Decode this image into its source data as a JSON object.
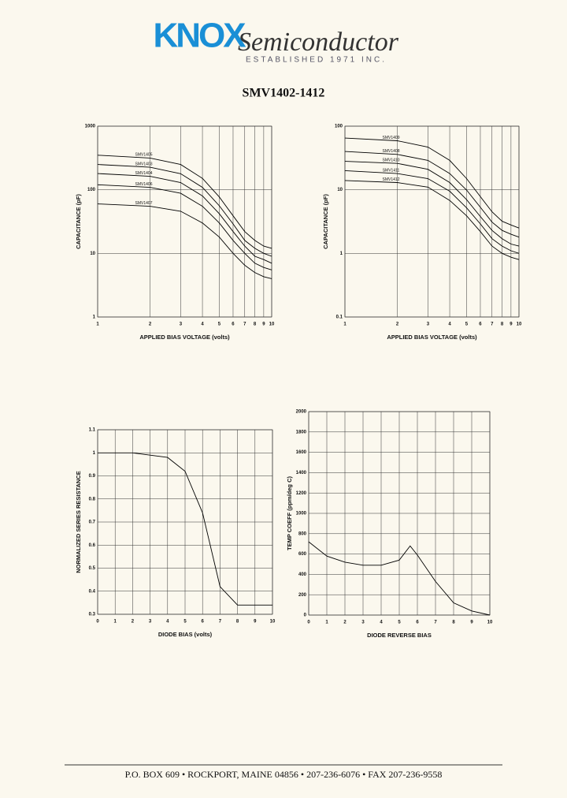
{
  "header": {
    "logo": "KNOX",
    "company": "Semiconductor",
    "established": "ESTABLISHED 1971 INC."
  },
  "title": "SMV1402-1412",
  "chart_data": [
    {
      "type": "line",
      "xscale": "log",
      "yscale": "log",
      "grid": true,
      "x": [
        1,
        2,
        3,
        4,
        5,
        6,
        7,
        8,
        9,
        10
      ],
      "series": [
        {
          "name": "SMV1405",
          "color": "#000000",
          "values": [
            350,
            316,
            250,
            151,
            77,
            39,
            22,
            16,
            13,
            12
          ]
        },
        {
          "name": "SMV1403",
          "color": "#000000",
          "values": [
            250,
            226,
            179,
            109,
            56,
            29,
            16,
            12,
            10,
            9
          ]
        },
        {
          "name": "SMV1404",
          "color": "#000000",
          "values": [
            180,
            163,
            130,
            80,
            42,
            22,
            13,
            9,
            8,
            7
          ]
        },
        {
          "name": "SMV1406",
          "color": "#000000",
          "values": [
            120,
            109,
            88,
            55,
            30,
            16,
            10,
            7,
            6,
            5.5
          ]
        },
        {
          "name": "SMV1407",
          "color": "#000000",
          "values": [
            60,
            55,
            46,
            30,
            18,
            10,
            6.5,
            5,
            4.3,
            4
          ]
        }
      ],
      "xlim": [
        1,
        10
      ],
      "xticks": [
        1,
        2,
        3,
        4,
        5,
        6,
        7,
        8,
        9,
        10
      ],
      "ylim": [
        1,
        1000
      ],
      "yticks": [
        1,
        10,
        100,
        1000
      ],
      "xlabel": "APPLIED BIAS VOLTAGE (volts)",
      "ylabel": "CAPACITANCE (pF)"
    },
    {
      "type": "line",
      "xscale": "log",
      "yscale": "log",
      "grid": true,
      "x": [
        1,
        2,
        3,
        4,
        5,
        6,
        7,
        8,
        9,
        10
      ],
      "series": [
        {
          "name": "SMV1409",
          "color": "#000000",
          "values": [
            65,
            59,
            47,
            29,
            15,
            7.8,
            4.5,
            3.2,
            2.8,
            2.5
          ]
        },
        {
          "name": "SMV1408",
          "color": "#000000",
          "values": [
            40,
            36,
            29,
            18,
            9.9,
            5.3,
            3.1,
            2.3,
            2.0,
            1.8
          ]
        },
        {
          "name": "SMV1410",
          "color": "#000000",
          "values": [
            28,
            26,
            21,
            13,
            7.0,
            3.8,
            2.3,
            1.7,
            1.4,
            1.3
          ]
        },
        {
          "name": "SMV1411",
          "color": "#000000",
          "values": [
            20,
            18,
            15,
            9.5,
            5.2,
            2.9,
            1.7,
            1.3,
            1.1,
            1
          ]
        },
        {
          "name": "SMV1412",
          "color": "#000000",
          "values": [
            14,
            13,
            11,
            6.8,
            3.9,
            2.2,
            1.3,
            1.0,
            0.87,
            0.8
          ]
        }
      ],
      "xlim": [
        1,
        10
      ],
      "xticks": [
        1,
        2,
        3,
        4,
        5,
        6,
        7,
        8,
        9,
        10
      ],
      "ylim": [
        0.1,
        100
      ],
      "yticks": [
        0.1,
        1,
        10,
        100
      ],
      "xlabel": "APPLIED BIAS VOLTAGE (volts)",
      "ylabel": "CAPACITANCE (pF)"
    },
    {
      "type": "line",
      "grid": true,
      "color": "#000000",
      "x": [
        0,
        1,
        2,
        3,
        4,
        5,
        6,
        7,
        8,
        9,
        10
      ],
      "values": [
        1,
        1,
        1,
        0.99,
        0.98,
        0.92,
        0.74,
        0.42,
        0.34,
        0.34,
        0.34
      ],
      "xlim": [
        0,
        10
      ],
      "xticks": [
        0,
        1,
        2,
        3,
        4,
        5,
        6,
        7,
        8,
        9,
        10
      ],
      "ylim": [
        0.3,
        1.1
      ],
      "yticks": [
        0.3,
        0.4,
        0.5,
        0.6,
        0.7,
        0.8,
        0.9,
        1,
        1.1
      ],
      "xlabel": "DIODE BIAS (volts)",
      "ylabel": "NORMALIZED SERIES RESISTANCE"
    },
    {
      "type": "line",
      "grid": true,
      "color": "#000000",
      "x": [
        0,
        1,
        2,
        3,
        4,
        5,
        5.6,
        6,
        7,
        8,
        9,
        10
      ],
      "values": [
        720,
        580,
        520,
        490,
        490,
        540,
        680,
        590,
        330,
        120,
        40,
        0
      ],
      "xlim": [
        0,
        10
      ],
      "xticks": [
        0,
        1,
        2,
        3,
        4,
        5,
        6,
        7,
        8,
        9,
        10
      ],
      "ylim": [
        0,
        2000
      ],
      "yticks": [
        0,
        200,
        400,
        600,
        800,
        1000,
        1200,
        1400,
        1600,
        1800,
        2000
      ],
      "xlabel": "DIODE REVERSE BIAS",
      "ylabel": "TEMP COEFF (ppm/deg C)"
    }
  ],
  "footer": "P.O. BOX 609  •  ROCKPORT, MAINE 04856  •  207-236-6076  •  FAX  207-236-9558"
}
